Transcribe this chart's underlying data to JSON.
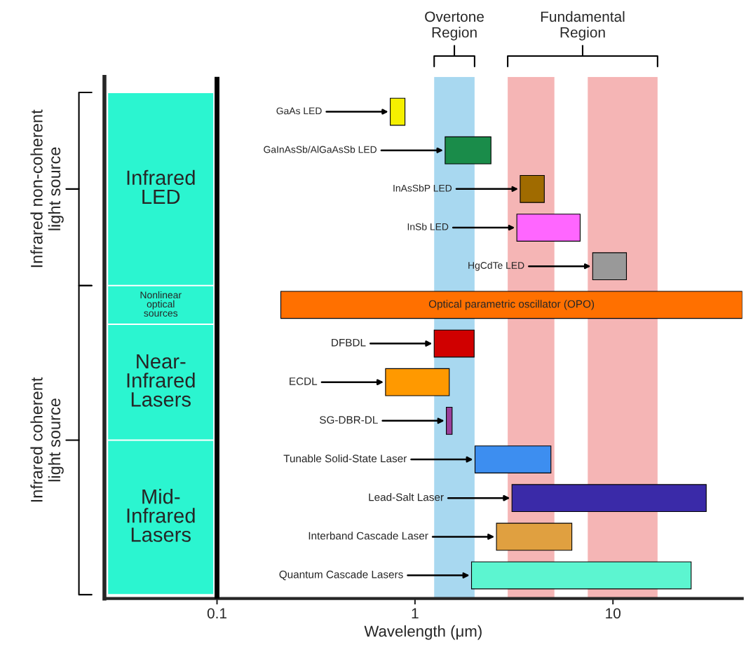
{
  "chart_data": {
    "type": "bar",
    "orientation": "horizontal",
    "log": "x",
    "xlabel": "Wavelength (μm)",
    "categories": [
      "GaAs LED",
      "GaInAsSb/AlGaAsSb LED",
      "InAsSbP LED",
      "InSb LED",
      "HgCdTe LED",
      "Optical parametric oscillator (OPO)",
      "DFBDL",
      "ECDL",
      "SG-DBR-DL",
      "Tunable Solid-State Laser",
      "Lead-Salt Laser",
      "Interband Cascade Laser",
      "Quantum Cascade Lasers"
    ],
    "base": [
      0.75,
      1.42,
      3.4,
      3.27,
      7.9,
      0.21,
      1.25,
      0.71,
      1.44,
      2.01,
      3.09,
      2.58,
      1.93
    ],
    "values": [
      0.14,
      1.0,
      1.1,
      3.56,
      3.8,
      44.8,
      0.74,
      0.78,
      0.1,
      2.85,
      26.5,
      3.62,
      22.9
    ],
    "colors": [
      "#f5f000",
      "#1a8c4a",
      "#a06b00",
      "#ff66ff",
      "#999999",
      "#ff7000",
      "#d00000",
      "#ff9900",
      "#9b3f9b",
      "#3d8ef0",
      "#3a2aa8",
      "#e0a040",
      "#5cf5d0"
    ],
    "xlim": [
      0.027,
      45
    ],
    "xticks": [
      0.1,
      1,
      10
    ],
    "tick_labels": "x",
    "grid": false,
    "legend": false,
    "bands": [
      {
        "axis": "x",
        "from": 1.25,
        "to": 2.0,
        "label": "Overtone Region",
        "color": "#a8d8f0"
      },
      {
        "axis": "x",
        "from": 2.94,
        "to": 5.06,
        "label": "Fundamental Region",
        "color": "#f5b5b5"
      },
      {
        "axis": "x",
        "from": 7.46,
        "to": 16.8,
        "label": null,
        "color": "#f5b5b5"
      }
    ],
    "ref_lines": [
      {
        "axis": "x",
        "value": 0.1,
        "color": "#000000"
      }
    ],
    "annotations": [
      "Infrared\nLED",
      "Nonlinear\noptical\nsources",
      "Near-\nInfrared\nLasers",
      "Mid-\nInfrared\nLasers",
      "Infrared non-coherent\nlight source",
      "Infrared coherent\nlight source"
    ]
  }
}
